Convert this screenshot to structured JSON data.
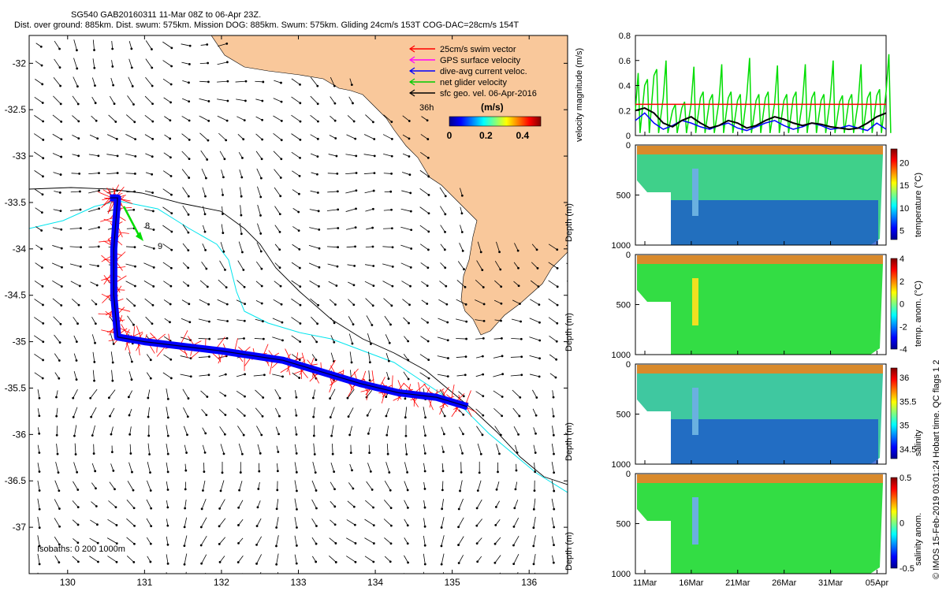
{
  "header": {
    "line1": "SG540 GAB20160311 11-Mar 08Z to 06-Apr 23Z.",
    "line2": "Dist. over ground: 885km. Dist. swum: 575km. Mission DOG: 885km. Swum: 575km. Gliding 24cm/s 153T COG-DAC=28cm/s 154T"
  },
  "credit": "© IMOS 15-Feb-2019 03:01:24 Hobart time. QC flags 1 2",
  "colors": {
    "land": "#f9c89b",
    "swim": "#ff0000",
    "gps": "#ff00ff",
    "dac": "#0000ff",
    "net": "#00dd00",
    "geo": "#000000",
    "isobath_200": "#00e5ee",
    "isobath_1000": "#000000"
  },
  "chart_data": [
    {
      "type": "map",
      "lon_ticks": [
        "130",
        "131",
        "132",
        "133",
        "134",
        "135",
        "136"
      ],
      "lat_ticks": [
        "-32",
        "-32.5",
        "-33",
        "-33.5",
        "-34",
        "-34.5",
        "-35",
        "-35.5",
        "-36",
        "-36.5",
        "-37"
      ],
      "xlim": [
        129.5,
        136.5
      ],
      "ylim": [
        -37.5,
        -31.7
      ],
      "legend": [
        {
          "label": "25cm/s swim vector",
          "color": "#ff0000"
        },
        {
          "label": "GPS surface velocity",
          "color": "#ff00ff"
        },
        {
          "label": "dive-avg current veloc.",
          "color": "#0000ff"
        },
        {
          "label": "net glider velocity",
          "color": "#00cc00"
        },
        {
          "label": "sfc geo. vel. 06-Apr-2016",
          "color": "#000000"
        }
      ],
      "colorbar": {
        "title": "(m/s)",
        "ticks": [
          "0",
          "0.2",
          "0.4"
        ],
        "range": [
          0,
          0.5
        ],
        "label_left": "36h"
      },
      "isobath_note": "Isobaths: 0   200  1000m",
      "track_labels": [
        "8",
        "9"
      ],
      "glider_track": [
        [
          130.55,
          -33.45
        ],
        [
          130.65,
          -33.45
        ],
        [
          130.6,
          -34.0
        ],
        [
          130.6,
          -34.5
        ],
        [
          130.65,
          -34.95
        ],
        [
          131.0,
          -35.0
        ],
        [
          132.0,
          -35.1
        ],
        [
          132.8,
          -35.2
        ],
        [
          133.2,
          -35.3
        ],
        [
          133.8,
          -35.45
        ],
        [
          134.3,
          -35.55
        ],
        [
          134.8,
          -35.6
        ],
        [
          135.2,
          -35.7
        ]
      ]
    },
    {
      "type": "line",
      "ylabel": "velocity magnitude (m/s)",
      "yticks": [
        "0",
        "0.2",
        "0.4",
        "0.6",
        "0.8"
      ],
      "ylim": [
        0,
        0.8
      ],
      "xlim_days": [
        0,
        27
      ],
      "series": [
        {
          "color": "#ff0000",
          "x": [
            0,
            27
          ],
          "y": [
            0.25,
            0.25
          ]
        },
        {
          "color": "#00dd00",
          "x": [
            0,
            1,
            2,
            3,
            4,
            5,
            6,
            7,
            8,
            9,
            10,
            11,
            12,
            13,
            14,
            15,
            16,
            17,
            18,
            19,
            20,
            21,
            22,
            23,
            24,
            25,
            26,
            27
          ],
          "y": [
            0.2,
            0.4,
            0.48,
            0.3,
            0.2,
            0.22,
            0.25,
            0.3,
            0.28,
            0.27,
            0.3,
            0.28,
            0.32,
            0.28,
            0.3,
            0.26,
            0.28,
            0.3,
            0.27,
            0.3,
            0.28,
            0.3,
            0.27,
            0.28,
            0.27,
            0.3,
            0.32,
            0.35
          ]
        },
        {
          "color": "#0000ff",
          "x": [
            0,
            1,
            2,
            3,
            4,
            5,
            6,
            7,
            8,
            9,
            10,
            11,
            12,
            13,
            14,
            15,
            16,
            17,
            18,
            19,
            20,
            21,
            22,
            23,
            24,
            25,
            26,
            27
          ],
          "y": [
            0.12,
            0.18,
            0.1,
            0.05,
            0.08,
            0.12,
            0.1,
            0.07,
            0.05,
            0.08,
            0.1,
            0.06,
            0.04,
            0.07,
            0.1,
            0.12,
            0.08,
            0.05,
            0.07,
            0.1,
            0.08,
            0.05,
            0.06,
            0.08,
            0.06,
            0.04,
            0.1,
            0.05
          ]
        },
        {
          "color": "#000000",
          "x": [
            0,
            1,
            2,
            3,
            4,
            5,
            6,
            7,
            8,
            9,
            10,
            11,
            12,
            13,
            14,
            15,
            16,
            17,
            18,
            19,
            20,
            21,
            22,
            23,
            24,
            25,
            26,
            27
          ],
          "y": [
            0.2,
            0.22,
            0.18,
            0.1,
            0.07,
            0.12,
            0.15,
            0.1,
            0.06,
            0.08,
            0.12,
            0.1,
            0.06,
            0.08,
            0.12,
            0.15,
            0.13,
            0.1,
            0.08,
            0.1,
            0.09,
            0.07,
            0.06,
            0.05,
            0.06,
            0.1,
            0.15,
            0.18
          ]
        }
      ]
    },
    {
      "type": "heatmap",
      "ylabel": "Depth (m)",
      "yticks": [
        "0",
        "500",
        "1000"
      ],
      "colorbar_label": "temperature (°C)",
      "colorbar_ticks": [
        "5",
        "10",
        "15",
        "20"
      ],
      "crange": [
        3,
        23
      ]
    },
    {
      "type": "heatmap",
      "ylabel": "Depth (m)",
      "yticks": [
        "0",
        "500",
        "1000"
      ],
      "colorbar_label": "temp. anom. (°C)",
      "colorbar_ticks": [
        "-4",
        "-2",
        "0",
        "2",
        "4"
      ],
      "crange": [
        -4,
        4
      ]
    },
    {
      "type": "heatmap",
      "ylabel": "Depth (m)",
      "yticks": [
        "0",
        "500",
        "1000"
      ],
      "colorbar_label": "salinity",
      "colorbar_ticks": [
        "34.5",
        "35",
        "35.5",
        "36"
      ],
      "crange": [
        34.3,
        36.2
      ]
    },
    {
      "type": "heatmap",
      "ylabel": "Depth (m)",
      "yticks": [
        "0",
        "500",
        "1000"
      ],
      "colorbar_label": "salinity anom.",
      "colorbar_ticks": [
        "-0.5",
        "0",
        "0.5"
      ],
      "crange": [
        -0.5,
        0.5
      ],
      "x_ticks": [
        "11Mar",
        "16Mar",
        "21Mar",
        "26Mar",
        "31Mar",
        "05Apr"
      ]
    }
  ]
}
